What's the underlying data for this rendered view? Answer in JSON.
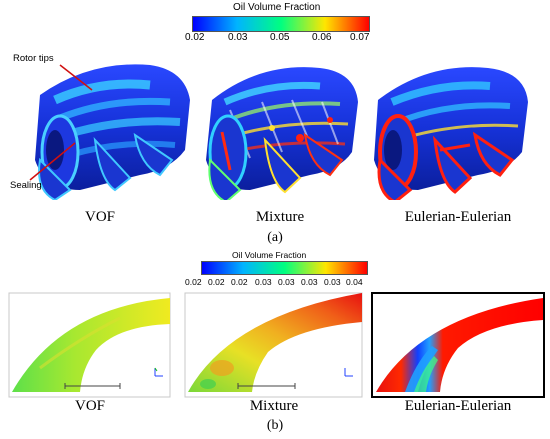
{
  "part_a": {
    "colorbar": {
      "title": "Oil Volume Fraction",
      "ticks": [
        "0.02",
        "0.03",
        "0.05",
        "0.06",
        "0.07"
      ],
      "colors": [
        "#0000ff",
        "#00c8ff",
        "#00ff80",
        "#ffff00",
        "#ff0000"
      ]
    },
    "annotations": {
      "rotor_tips": "Rotor tips",
      "sealing": "Sealing"
    },
    "captions": [
      "VOF",
      "Mixture",
      "Eulerian-Eulerian"
    ],
    "label": "(a)"
  },
  "part_b": {
    "colorbar": {
      "title": "Oil Volume Fraction",
      "ticks": [
        "0.02",
        "0.02",
        "0.02",
        "0.03",
        "0.03",
        "0.03",
        "0.03",
        "0.04"
      ]
    },
    "captions": [
      "VOF",
      "Mixture",
      "Eulerian-Eulerian"
    ],
    "label": "(b)"
  }
}
